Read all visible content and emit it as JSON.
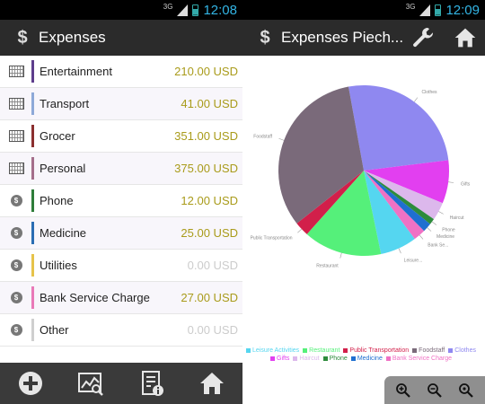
{
  "status": {
    "network": "3G",
    "time_left": "12:08",
    "time_right": "12:09"
  },
  "expenses_screen": {
    "title": "Expenses",
    "items": [
      {
        "label": "Entertainment",
        "amount": "210.00 USD",
        "icon": "abacus-icon",
        "color": "#5e3e8c"
      },
      {
        "label": "Transport",
        "amount": "41.00 USD",
        "icon": "abacus-icon",
        "color": "#8ea9d8"
      },
      {
        "label": "Grocer",
        "amount": "351.00 USD",
        "icon": "abacus-icon",
        "color": "#8b2f2f"
      },
      {
        "label": "Personal",
        "amount": "375.00 USD",
        "icon": "abacus-icon",
        "color": "#a56f8b"
      },
      {
        "label": "Phone",
        "amount": "12.00 USD",
        "icon": "coin-icon",
        "color": "#2e7d3a"
      },
      {
        "label": "Medicine",
        "amount": "25.00 USD",
        "icon": "coin-icon",
        "color": "#2a6db3"
      },
      {
        "label": "Utilities",
        "amount": "0.00 USD",
        "icon": "coin-icon",
        "color": "#e6c34a"
      },
      {
        "label": "Bank Service Charge",
        "amount": "27.00 USD",
        "icon": "coin-icon",
        "color": "#e97ab8"
      },
      {
        "label": "Other",
        "amount": "0.00 USD",
        "icon": "coin-icon",
        "color": "#cfcfcf"
      }
    ],
    "bottom_actions": [
      "add-icon",
      "chart-search-icon",
      "report-info-icon",
      "home-icon"
    ]
  },
  "piechart_screen": {
    "title": "Expenses Piech...",
    "actions": [
      "wrench-icon",
      "home-icon"
    ],
    "zoom_buttons": [
      "zoom-in-icon",
      "zoom-out-icon",
      "zoom-reset-icon"
    ],
    "legend": [
      {
        "label": "Leisure Activities",
        "color": "#55d6f0"
      },
      {
        "label": "Restaurant",
        "color": "#55f07a"
      },
      {
        "label": "Public Transportation",
        "color": "#d21f4a"
      },
      {
        "label": "Foodstaff",
        "color": "#7a6a7a"
      },
      {
        "label": "Clothes",
        "color": "#8f88f0"
      },
      {
        "label": "Gifts",
        "color": "#e23ff0"
      },
      {
        "label": "Haircut",
        "color": "#dcb8ec"
      },
      {
        "label": "Phone",
        "color": "#2e8b3c"
      },
      {
        "label": "Medicine",
        "color": "#1f6fd0"
      },
      {
        "label": "Bank Service Charge",
        "color": "#f071c4"
      }
    ]
  },
  "chart_data": {
    "type": "pie",
    "slices": [
      {
        "label": "Clothes",
        "value": 27.2,
        "color": "#8f88f0"
      },
      {
        "label": "Gifts",
        "value": 8.6,
        "color": "#e23ff0"
      },
      {
        "label": "Haircut",
        "value": 3.6,
        "color": "#dcb8ec"
      },
      {
        "label": "Phone",
        "value": 1.2,
        "color": "#2e8b3c"
      },
      {
        "label": "Medicine",
        "value": 1.8,
        "color": "#1f6fd0"
      },
      {
        "label": "Bank Se...",
        "value": 2.4,
        "color": "#f071c4"
      },
      {
        "label": "Leisure...",
        "value": 7.3,
        "color": "#55d6f0"
      },
      {
        "label": "Restaurant",
        "value": 15.6,
        "color": "#55f07a"
      },
      {
        "label": "Public Transportation",
        "value": 2.9,
        "color": "#d21f4a"
      },
      {
        "label": "Foodstaff",
        "value": 34.4,
        "color": "#7a6a7a"
      }
    ]
  }
}
